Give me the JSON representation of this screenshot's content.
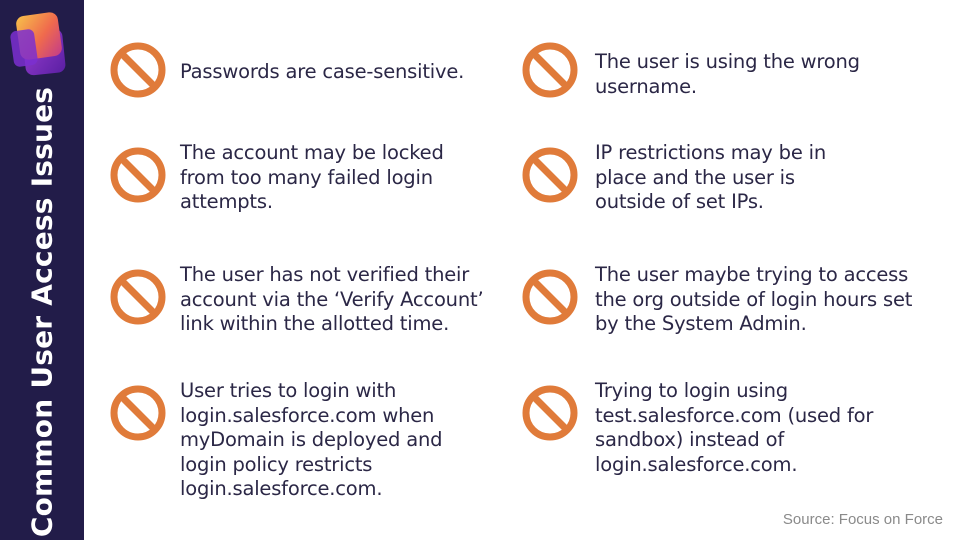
{
  "sidebar": {
    "title": "Common User Access Issues"
  },
  "colors": {
    "sidebar_bg": "#221c49",
    "icon_orange": "#e07b3a",
    "text": "#2b2746",
    "source_text": "#8a8a8a"
  },
  "icon": "no-entry-icon",
  "issues_left": [
    {
      "text": "Passwords are case-sensitive."
    },
    {
      "text": "The account may be locked\nfrom too many failed login\nattempts."
    },
    {
      "text": "The user has not verified their\naccount via the ‘Verify Account’\nlink within the allotted time."
    },
    {
      "text": "User tries to login with\nlogin.salesforce.com when\nmyDomain is deployed and\nlogin policy restricts\nlogin.salesforce.com."
    }
  ],
  "issues_right": [
    {
      "text": "The user is using the wrong\nusername."
    },
    {
      "text": "IP restrictions may be in\nplace and the user is\noutside of set IPs."
    },
    {
      "text": "The user maybe trying to access\nthe org outside of login hours set\nby the System Admin."
    },
    {
      "text": "Trying to login using\ntest.salesforce.com (used for\nsandbox) instead of\nlogin.salesforce.com."
    }
  ],
  "footer": {
    "source": "Source: Focus on Force"
  }
}
